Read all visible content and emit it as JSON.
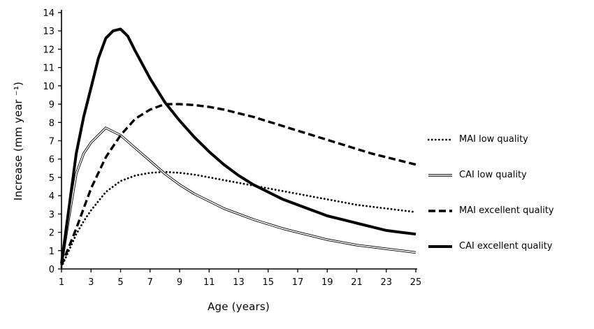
{
  "chart_data": {
    "type": "line",
    "title": "",
    "xlabel": "Age (years)",
    "ylabel": "Increase (mm year ⁻¹)",
    "xlim": [
      1,
      25
    ],
    "ylim": [
      0,
      14
    ],
    "x_ticks": [
      1,
      3,
      5,
      7,
      9,
      11,
      13,
      15,
      17,
      19,
      21,
      23,
      25
    ],
    "y_ticks": [
      0,
      1,
      2,
      3,
      4,
      5,
      6,
      7,
      8,
      9,
      10,
      11,
      12,
      13,
      14
    ],
    "grid": false,
    "legend_position": "right",
    "line_color": "#000000",
    "series": [
      {
        "name": "MAI low quality",
        "line_style": "dotted",
        "x": [
          1,
          1.5,
          2,
          2.5,
          3,
          4,
          5,
          6,
          7,
          8,
          9,
          10,
          11,
          12,
          13,
          14,
          15,
          16,
          17,
          18,
          19,
          20,
          21,
          22,
          23,
          24,
          25
        ],
        "values": [
          0.1,
          1.0,
          1.9,
          2.6,
          3.2,
          4.2,
          4.8,
          5.1,
          5.25,
          5.3,
          5.25,
          5.15,
          5.0,
          4.85,
          4.7,
          4.55,
          4.4,
          4.25,
          4.1,
          3.95,
          3.8,
          3.65,
          3.5,
          3.4,
          3.3,
          3.2,
          3.1
        ]
      },
      {
        "name": "CAI low quality",
        "line_style": "double",
        "x": [
          1,
          1.5,
          2,
          2.5,
          3,
          3.5,
          4,
          4.5,
          5,
          6,
          7,
          8,
          9,
          10,
          11,
          12,
          13,
          14,
          15,
          16,
          17,
          18,
          19,
          20,
          21,
          22,
          23,
          24,
          25
        ],
        "values": [
          0.2,
          2.8,
          5.2,
          6.3,
          6.9,
          7.3,
          7.7,
          7.5,
          7.3,
          6.6,
          5.9,
          5.2,
          4.6,
          4.1,
          3.7,
          3.3,
          3.0,
          2.7,
          2.45,
          2.2,
          2.0,
          1.8,
          1.6,
          1.45,
          1.3,
          1.2,
          1.1,
          1.0,
          0.9
        ]
      },
      {
        "name": "MAI excellent quality",
        "line_style": "dashed",
        "x": [
          1,
          1.5,
          2,
          2.5,
          3,
          4,
          5,
          6,
          7,
          8,
          9,
          10,
          11,
          12,
          13,
          14,
          15,
          16,
          17,
          18,
          19,
          20,
          21,
          22,
          23,
          24,
          25
        ],
        "values": [
          0.2,
          1.2,
          2.2,
          3.3,
          4.4,
          6.1,
          7.3,
          8.2,
          8.7,
          9.0,
          9.0,
          8.95,
          8.85,
          8.7,
          8.5,
          8.3,
          8.05,
          7.8,
          7.55,
          7.3,
          7.05,
          6.8,
          6.55,
          6.3,
          6.1,
          5.9,
          5.7
        ]
      },
      {
        "name": "CAI excellent quality",
        "line_style": "solid",
        "x": [
          1,
          1.5,
          2,
          2.5,
          3,
          3.5,
          4,
          4.5,
          5,
          5.5,
          6,
          7,
          8,
          9,
          10,
          11,
          12,
          13,
          14,
          15,
          16,
          17,
          18,
          19,
          20,
          21,
          22,
          23,
          24,
          25
        ],
        "values": [
          0.3,
          3.3,
          6.3,
          8.3,
          9.9,
          11.5,
          12.6,
          13.0,
          13.1,
          12.7,
          11.9,
          10.4,
          9.1,
          8.1,
          7.2,
          6.4,
          5.7,
          5.1,
          4.6,
          4.2,
          3.8,
          3.5,
          3.2,
          2.9,
          2.7,
          2.5,
          2.3,
          2.1,
          2.0,
          1.9
        ]
      }
    ]
  }
}
